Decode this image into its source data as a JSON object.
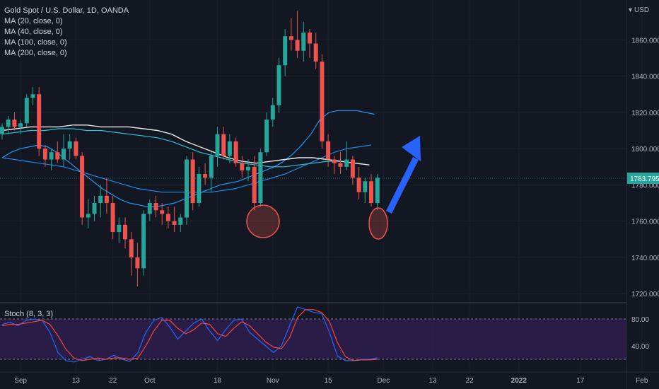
{
  "header": {
    "title": "Gold Spot / U.S. Dollar, 1D, OANDA",
    "indicators": [
      "MA (20, close, 0)",
      "MA (40, close, 0)",
      "MA (100, close, 0)",
      "MA (200, close, 0)"
    ],
    "currency": "USD",
    "currency_icon": "dropdown-arrow-icon"
  },
  "price_axis": {
    "ticks": [
      "1860.000",
      "1840.000",
      "1820.000",
      "1800.000",
      "1780.000",
      "1760.000",
      "1740.000",
      "1720.000"
    ],
    "current_price": "1783.795"
  },
  "stoch": {
    "label": "Stoch (8, 3, 3)",
    "ticks": [
      "80.00",
      "40.00"
    ],
    "upper_band": 80,
    "lower_band": 20
  },
  "time_axis": {
    "labels": [
      "Sep",
      "13",
      "22",
      "Oct",
      "18",
      "Nov",
      "15",
      "Dec",
      "13",
      "22",
      "2022",
      "17",
      "Feb"
    ],
    "bold_label": "2022"
  },
  "colors": {
    "up": "#26a69a",
    "down": "#ef5350",
    "ma20": "#2196f3",
    "ma40": "#1e88e5",
    "ma100": "#26c6da",
    "ma200": "#e8e8e8",
    "stoch_k": "#2962ff",
    "stoch_d": "#f44336",
    "arrow": "#2962ff",
    "circle": "#ef5350"
  },
  "chart_data": {
    "type": "candlestick",
    "title": "Gold Spot / U.S. Dollar, 1D, OANDA",
    "ylim": [
      1715,
      1882
    ],
    "candles": [
      [
        1808,
        1814,
        1805,
        1812
      ],
      [
        1812,
        1818,
        1808,
        1816
      ],
      [
        1816,
        1820,
        1810,
        1812
      ],
      [
        1812,
        1816,
        1808,
        1814
      ],
      [
        1814,
        1830,
        1812,
        1828
      ],
      [
        1828,
        1834,
        1824,
        1830
      ],
      [
        1830,
        1834,
        1796,
        1800
      ],
      [
        1800,
        1802,
        1790,
        1794
      ],
      [
        1794,
        1800,
        1788,
        1798
      ],
      [
        1798,
        1804,
        1792,
        1794
      ],
      [
        1794,
        1808,
        1790,
        1800
      ],
      [
        1800,
        1808,
        1794,
        1804
      ],
      [
        1804,
        1806,
        1794,
        1796
      ],
      [
        1796,
        1798,
        1758,
        1762
      ],
      [
        1762,
        1772,
        1756,
        1764
      ],
      [
        1764,
        1774,
        1760,
        1770
      ],
      [
        1770,
        1780,
        1762,
        1774
      ],
      [
        1774,
        1784,
        1764,
        1770
      ],
      [
        1770,
        1774,
        1750,
        1754
      ],
      [
        1754,
        1762,
        1748,
        1758
      ],
      [
        1758,
        1762,
        1745,
        1750
      ],
      [
        1750,
        1754,
        1730,
        1740
      ],
      [
        1740,
        1748,
        1724,
        1734
      ],
      [
        1734,
        1766,
        1730,
        1764
      ],
      [
        1764,
        1772,
        1760,
        1770
      ],
      [
        1770,
        1774,
        1762,
        1766
      ],
      [
        1766,
        1770,
        1758,
        1764
      ],
      [
        1764,
        1768,
        1756,
        1760
      ],
      [
        1760,
        1768,
        1754,
        1758
      ],
      [
        1758,
        1764,
        1754,
        1762
      ],
      [
        1762,
        1796,
        1758,
        1794
      ],
      [
        1794,
        1798,
        1766,
        1770
      ],
      [
        1770,
        1790,
        1768,
        1786
      ],
      [
        1786,
        1792,
        1780,
        1784
      ],
      [
        1784,
        1798,
        1776,
        1796
      ],
      [
        1796,
        1812,
        1790,
        1808
      ],
      [
        1808,
        1812,
        1794,
        1796
      ],
      [
        1796,
        1808,
        1792,
        1804
      ],
      [
        1804,
        1806,
        1790,
        1792
      ],
      [
        1792,
        1796,
        1784,
        1788
      ],
      [
        1788,
        1794,
        1782,
        1790
      ],
      [
        1790,
        1796,
        1766,
        1770
      ],
      [
        1770,
        1800,
        1768,
        1798
      ],
      [
        1798,
        1820,
        1796,
        1816
      ],
      [
        1816,
        1828,
        1812,
        1824
      ],
      [
        1824,
        1850,
        1820,
        1846
      ],
      [
        1846,
        1866,
        1840,
        1862
      ],
      [
        1862,
        1872,
        1854,
        1860
      ],
      [
        1860,
        1876,
        1850,
        1854
      ],
      [
        1854,
        1870,
        1848,
        1864
      ],
      [
        1864,
        1866,
        1850,
        1858
      ],
      [
        1858,
        1864,
        1844,
        1848
      ],
      [
        1848,
        1852,
        1800,
        1804
      ],
      [
        1804,
        1808,
        1790,
        1794
      ],
      [
        1794,
        1796,
        1786,
        1792
      ],
      [
        1792,
        1798,
        1786,
        1790
      ],
      [
        1790,
        1804,
        1788,
        1794
      ],
      [
        1794,
        1796,
        1780,
        1784
      ],
      [
        1784,
        1790,
        1772,
        1776
      ],
      [
        1776,
        1784,
        1770,
        1782
      ],
      [
        1782,
        1786,
        1768,
        1770
      ],
      [
        1770,
        1786,
        1766,
        1784
      ]
    ],
    "ma": [
      {
        "name": "MA (20, close, 0)",
        "values": [
          1795,
          1798,
          1800,
          1801,
          1802,
          1801,
          1798,
          1794,
          1790,
          1786,
          1782,
          1778,
          1775,
          1772,
          1770,
          1769,
          1768,
          1768,
          1769,
          1770,
          1772,
          1774,
          1776,
          1778,
          1780,
          1781,
          1782,
          1784,
          1786,
          1788,
          1790,
          1793,
          1797,
          1802,
          1808,
          1816,
          1820,
          1821,
          1821,
          1821,
          1820,
          1819
        ]
      },
      {
        "name": "MA (40, close, 0)",
        "values": [
          1795,
          1794,
          1793,
          1792,
          1791,
          1790,
          1788,
          1786,
          1784,
          1782,
          1780,
          1778,
          1777,
          1776,
          1776,
          1776,
          1776,
          1776,
          1777,
          1778,
          1780,
          1782,
          1784,
          1786,
          1789,
          1792,
          1795,
          1798,
          1800,
          1801,
          1802
        ]
      },
      {
        "name": "MA (100, close, 0)",
        "values": [
          1808,
          1809,
          1810,
          1810,
          1811,
          1811,
          1810,
          1810,
          1809,
          1808,
          1807,
          1806,
          1804,
          1801,
          1798,
          1796,
          1794,
          1792,
          1791,
          1790,
          1790,
          1791,
          1792,
          1793,
          1793,
          1792,
          1791
        ]
      },
      {
        "name": "MA (200, close, 0)",
        "values": [
          1810,
          1811,
          1812,
          1812,
          1812,
          1813,
          1813,
          1812,
          1812,
          1812,
          1811,
          1810,
          1808,
          1804,
          1801,
          1798,
          1795,
          1793,
          1792,
          1793,
          1794,
          1795,
          1795,
          1794,
          1793,
          1792,
          1791
        ]
      }
    ],
    "stoch": {
      "k": [
        72,
        75,
        70,
        78,
        80,
        78,
        60,
        30,
        18,
        16,
        20,
        24,
        18,
        20,
        26,
        20,
        17,
        30,
        60,
        78,
        82,
        68,
        50,
        62,
        74,
        80,
        62,
        48,
        64,
        78,
        80,
        60,
        50,
        40,
        30,
        40,
        70,
        98,
        94,
        90,
        88,
        60,
        25,
        18,
        18,
        20,
        20,
        22
      ],
      "d": [
        70,
        72,
        72,
        74,
        76,
        78,
        72,
        55,
        35,
        22,
        18,
        20,
        22,
        20,
        22,
        22,
        20,
        22,
        40,
        62,
        78,
        78,
        66,
        58,
        64,
        74,
        72,
        58,
        54,
        66,
        76,
        70,
        58,
        46,
        38,
        36,
        52,
        82,
        94,
        94,
        90,
        76,
        45,
        24,
        18,
        19,
        19,
        20
      ]
    }
  }
}
